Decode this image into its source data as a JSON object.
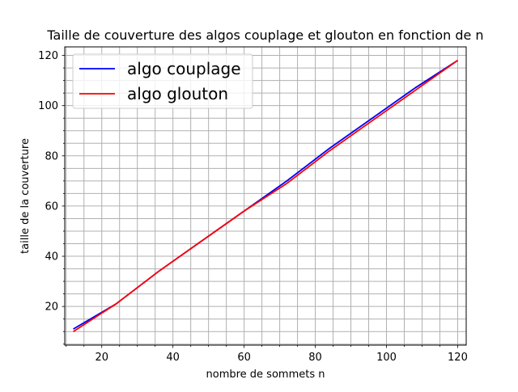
{
  "chart_data": {
    "type": "line",
    "title": "Taille de couverture des algos couplage et glouton en fonction de n",
    "xlabel": "nombre de sommets n",
    "ylabel": "taille de la couverture",
    "xlim": [
      9.6,
      122.4
    ],
    "ylim": [
      4.6,
      123.4
    ],
    "xticks": [
      20,
      40,
      60,
      80,
      100,
      120
    ],
    "yticks": [
      20,
      40,
      60,
      80,
      100,
      120
    ],
    "xtick_labels": [
      "20",
      "40",
      "60",
      "80",
      "100",
      "120"
    ],
    "ytick_labels": [
      "20",
      "40",
      "60",
      "80",
      "100",
      "120"
    ],
    "x_minor_step": 5,
    "y_minor_step": 5,
    "grid": true,
    "legend": "top-left",
    "series": [
      {
        "name": "algo couplage",
        "color": "#0000ff",
        "x": [
          12,
          24,
          36,
          48,
          60,
          72,
          84,
          96,
          108,
          120
        ],
        "y": [
          11,
          21,
          34,
          46,
          58,
          70,
          83,
          95,
          107,
          118
        ]
      },
      {
        "name": "algo glouton",
        "color": "#ff0000",
        "x": [
          12,
          24,
          36,
          48,
          60,
          72,
          84,
          96,
          108,
          120
        ],
        "y": [
          10,
          21,
          34,
          46,
          58,
          69,
          82,
          94,
          106,
          118
        ]
      }
    ]
  }
}
